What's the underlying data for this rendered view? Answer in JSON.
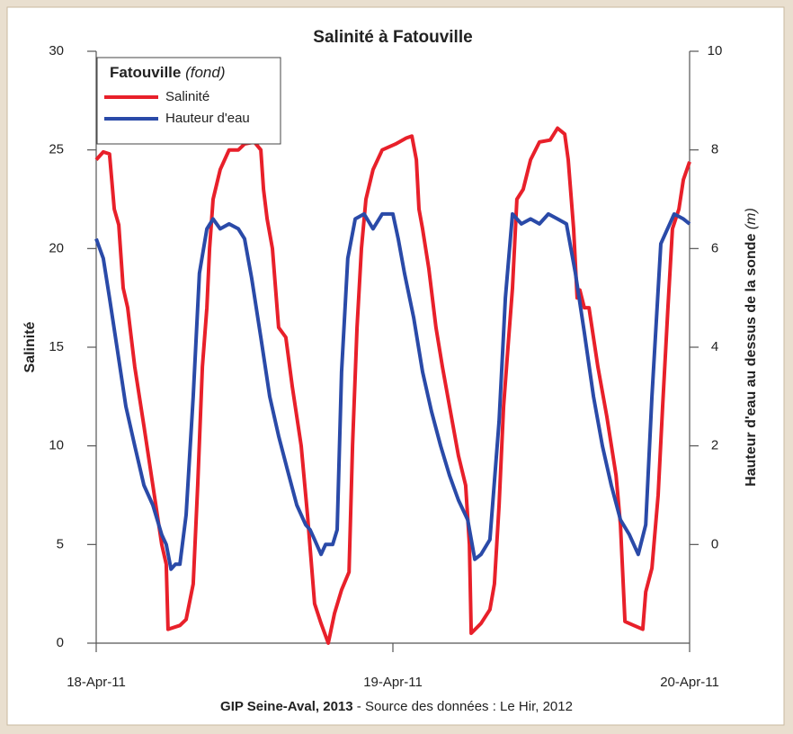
{
  "chart_data": {
    "type": "line",
    "title": "Salinité à Fatouville",
    "y_label": "Salinité",
    "y2_label": "Hauteur d'eau au dessus de la sonde",
    "y2_label_unit": "(m)",
    "legend_title": "Fatouville",
    "legend_subtitle": "(fond)",
    "legend_position": "upper left",
    "footer_bold": "GIP Seine-Aval, 2013",
    "footer_text": " - Source des données : Le Hir, 2012",
    "xlim": [
      0,
      2
    ],
    "xticks": [
      {
        "value": 0,
        "label": "18-Apr-11"
      },
      {
        "value": 1,
        "label": "19-Apr-11"
      },
      {
        "value": 2,
        "label": "20-Apr-11"
      }
    ],
    "ylim": [
      0,
      30
    ],
    "yticks": [
      0,
      5,
      10,
      15,
      20,
      25,
      30
    ],
    "y2lim": [
      -2,
      10
    ],
    "y2ticks": [
      0,
      2,
      4,
      6,
      8,
      10
    ],
    "series": [
      {
        "name": "Salinité",
        "color": "#e8202a",
        "x": [
          0,
          0.024,
          0.045,
          0.061,
          0.076,
          0.091,
          0.106,
          0.13,
          0.161,
          0.191,
          0.221,
          0.236,
          0.242,
          0.282,
          0.303,
          0.327,
          0.342,
          0.358,
          0.373,
          0.382,
          0.394,
          0.418,
          0.448,
          0.479,
          0.5,
          0.533,
          0.555,
          0.564,
          0.576,
          0.594,
          0.615,
          0.639,
          0.661,
          0.691,
          0.712,
          0.736,
          0.758,
          0.782,
          0.803,
          0.827,
          0.852,
          0.864,
          0.879,
          0.894,
          0.909,
          0.933,
          0.964,
          1.009,
          1.045,
          1.064,
          1.079,
          1.088,
          1.1,
          1.121,
          1.145,
          1.167,
          1.191,
          1.221,
          1.245,
          1.258,
          1.264,
          1.297,
          1.327,
          1.342,
          1.358,
          1.373,
          1.388,
          1.403,
          1.418,
          1.439,
          1.464,
          1.494,
          1.53,
          1.555,
          1.579,
          1.591,
          1.609,
          1.621,
          1.63,
          1.645,
          1.661,
          1.691,
          1.721,
          1.752,
          1.767,
          1.782,
          1.812,
          1.842,
          1.852,
          1.873,
          1.894,
          1.909,
          1.927,
          1.942,
          1.964,
          1.979,
          2
        ],
        "values": [
          24.5,
          24.9,
          24.8,
          22.0,
          21.2,
          18.0,
          17.0,
          14,
          11,
          8,
          5,
          4,
          0.7,
          0.9,
          1.2,
          3,
          8,
          14,
          17,
          20,
          22.5,
          24,
          25,
          25,
          25.3,
          25.4,
          25,
          23,
          21.5,
          20,
          16,
          15.5,
          13,
          10,
          6.5,
          2,
          1,
          0,
          1.5,
          2.7,
          3.6,
          10,
          16,
          20,
          22.5,
          24,
          25,
          25.3,
          25.6,
          25.7,
          24.5,
          22,
          21,
          19,
          16,
          14,
          12,
          9.5,
          8,
          5,
          0.5,
          1,
          1.7,
          3,
          7,
          12,
          15,
          18,
          22.5,
          23,
          24.5,
          25.4,
          25.5,
          26.1,
          25.8,
          24.5,
          21,
          17.5,
          17.9,
          17,
          17,
          14,
          11.5,
          8.5,
          6,
          1.1,
          0.9,
          0.7,
          2.6,
          3.8,
          7.5,
          12,
          17,
          21,
          22,
          23.5,
          24.4
        ]
      },
      {
        "name": "Hauteur d'eau",
        "color": "#2a4aa8",
        "axis": "y2",
        "x": [
          0,
          0.024,
          0.045,
          0.07,
          0.1,
          0.13,
          0.161,
          0.191,
          0.221,
          0.236,
          0.252,
          0.267,
          0.282,
          0.303,
          0.327,
          0.348,
          0.373,
          0.394,
          0.418,
          0.448,
          0.479,
          0.5,
          0.524,
          0.555,
          0.585,
          0.615,
          0.645,
          0.676,
          0.706,
          0.721,
          0.736,
          0.758,
          0.773,
          0.797,
          0.812,
          0.827,
          0.848,
          0.873,
          0.903,
          0.933,
          0.964,
          1,
          1.018,
          1.039,
          1.07,
          1.1,
          1.13,
          1.161,
          1.191,
          1.221,
          1.252,
          1.276,
          1.297,
          1.327,
          1.358,
          1.379,
          1.403,
          1.433,
          1.464,
          1.494,
          1.524,
          1.555,
          1.585,
          1.615,
          1.645,
          1.676,
          1.706,
          1.736,
          1.767,
          1.797,
          1.827,
          1.852,
          1.873,
          1.903,
          1.933,
          1.948,
          1.979,
          2
        ],
        "values": [
          6.2,
          5.8,
          5.0,
          4.0,
          2.8,
          2.0,
          1.2,
          0.8,
          0.2,
          0.0,
          -0.5,
          -0.4,
          -0.4,
          0.6,
          3.0,
          5.5,
          6.4,
          6.6,
          6.4,
          6.5,
          6.4,
          6.2,
          5.4,
          4.2,
          3.0,
          2.2,
          1.5,
          0.8,
          0.4,
          0.3,
          0.1,
          -0.2,
          0.0,
          0.0,
          0.3,
          3.5,
          5.8,
          6.6,
          6.7,
          6.4,
          6.7,
          6.7,
          6.2,
          5.5,
          4.6,
          3.5,
          2.7,
          2.0,
          1.4,
          0.9,
          0.5,
          -0.3,
          -0.2,
          0.1,
          2.5,
          5.0,
          6.7,
          6.5,
          6.6,
          6.5,
          6.7,
          6.6,
          6.5,
          5.5,
          4.3,
          3.0,
          2.0,
          1.2,
          0.5,
          0.2,
          -0.2,
          0.4,
          3.0,
          6.1,
          6.5,
          6.7,
          6.6,
          6.5
        ]
      }
    ]
  }
}
